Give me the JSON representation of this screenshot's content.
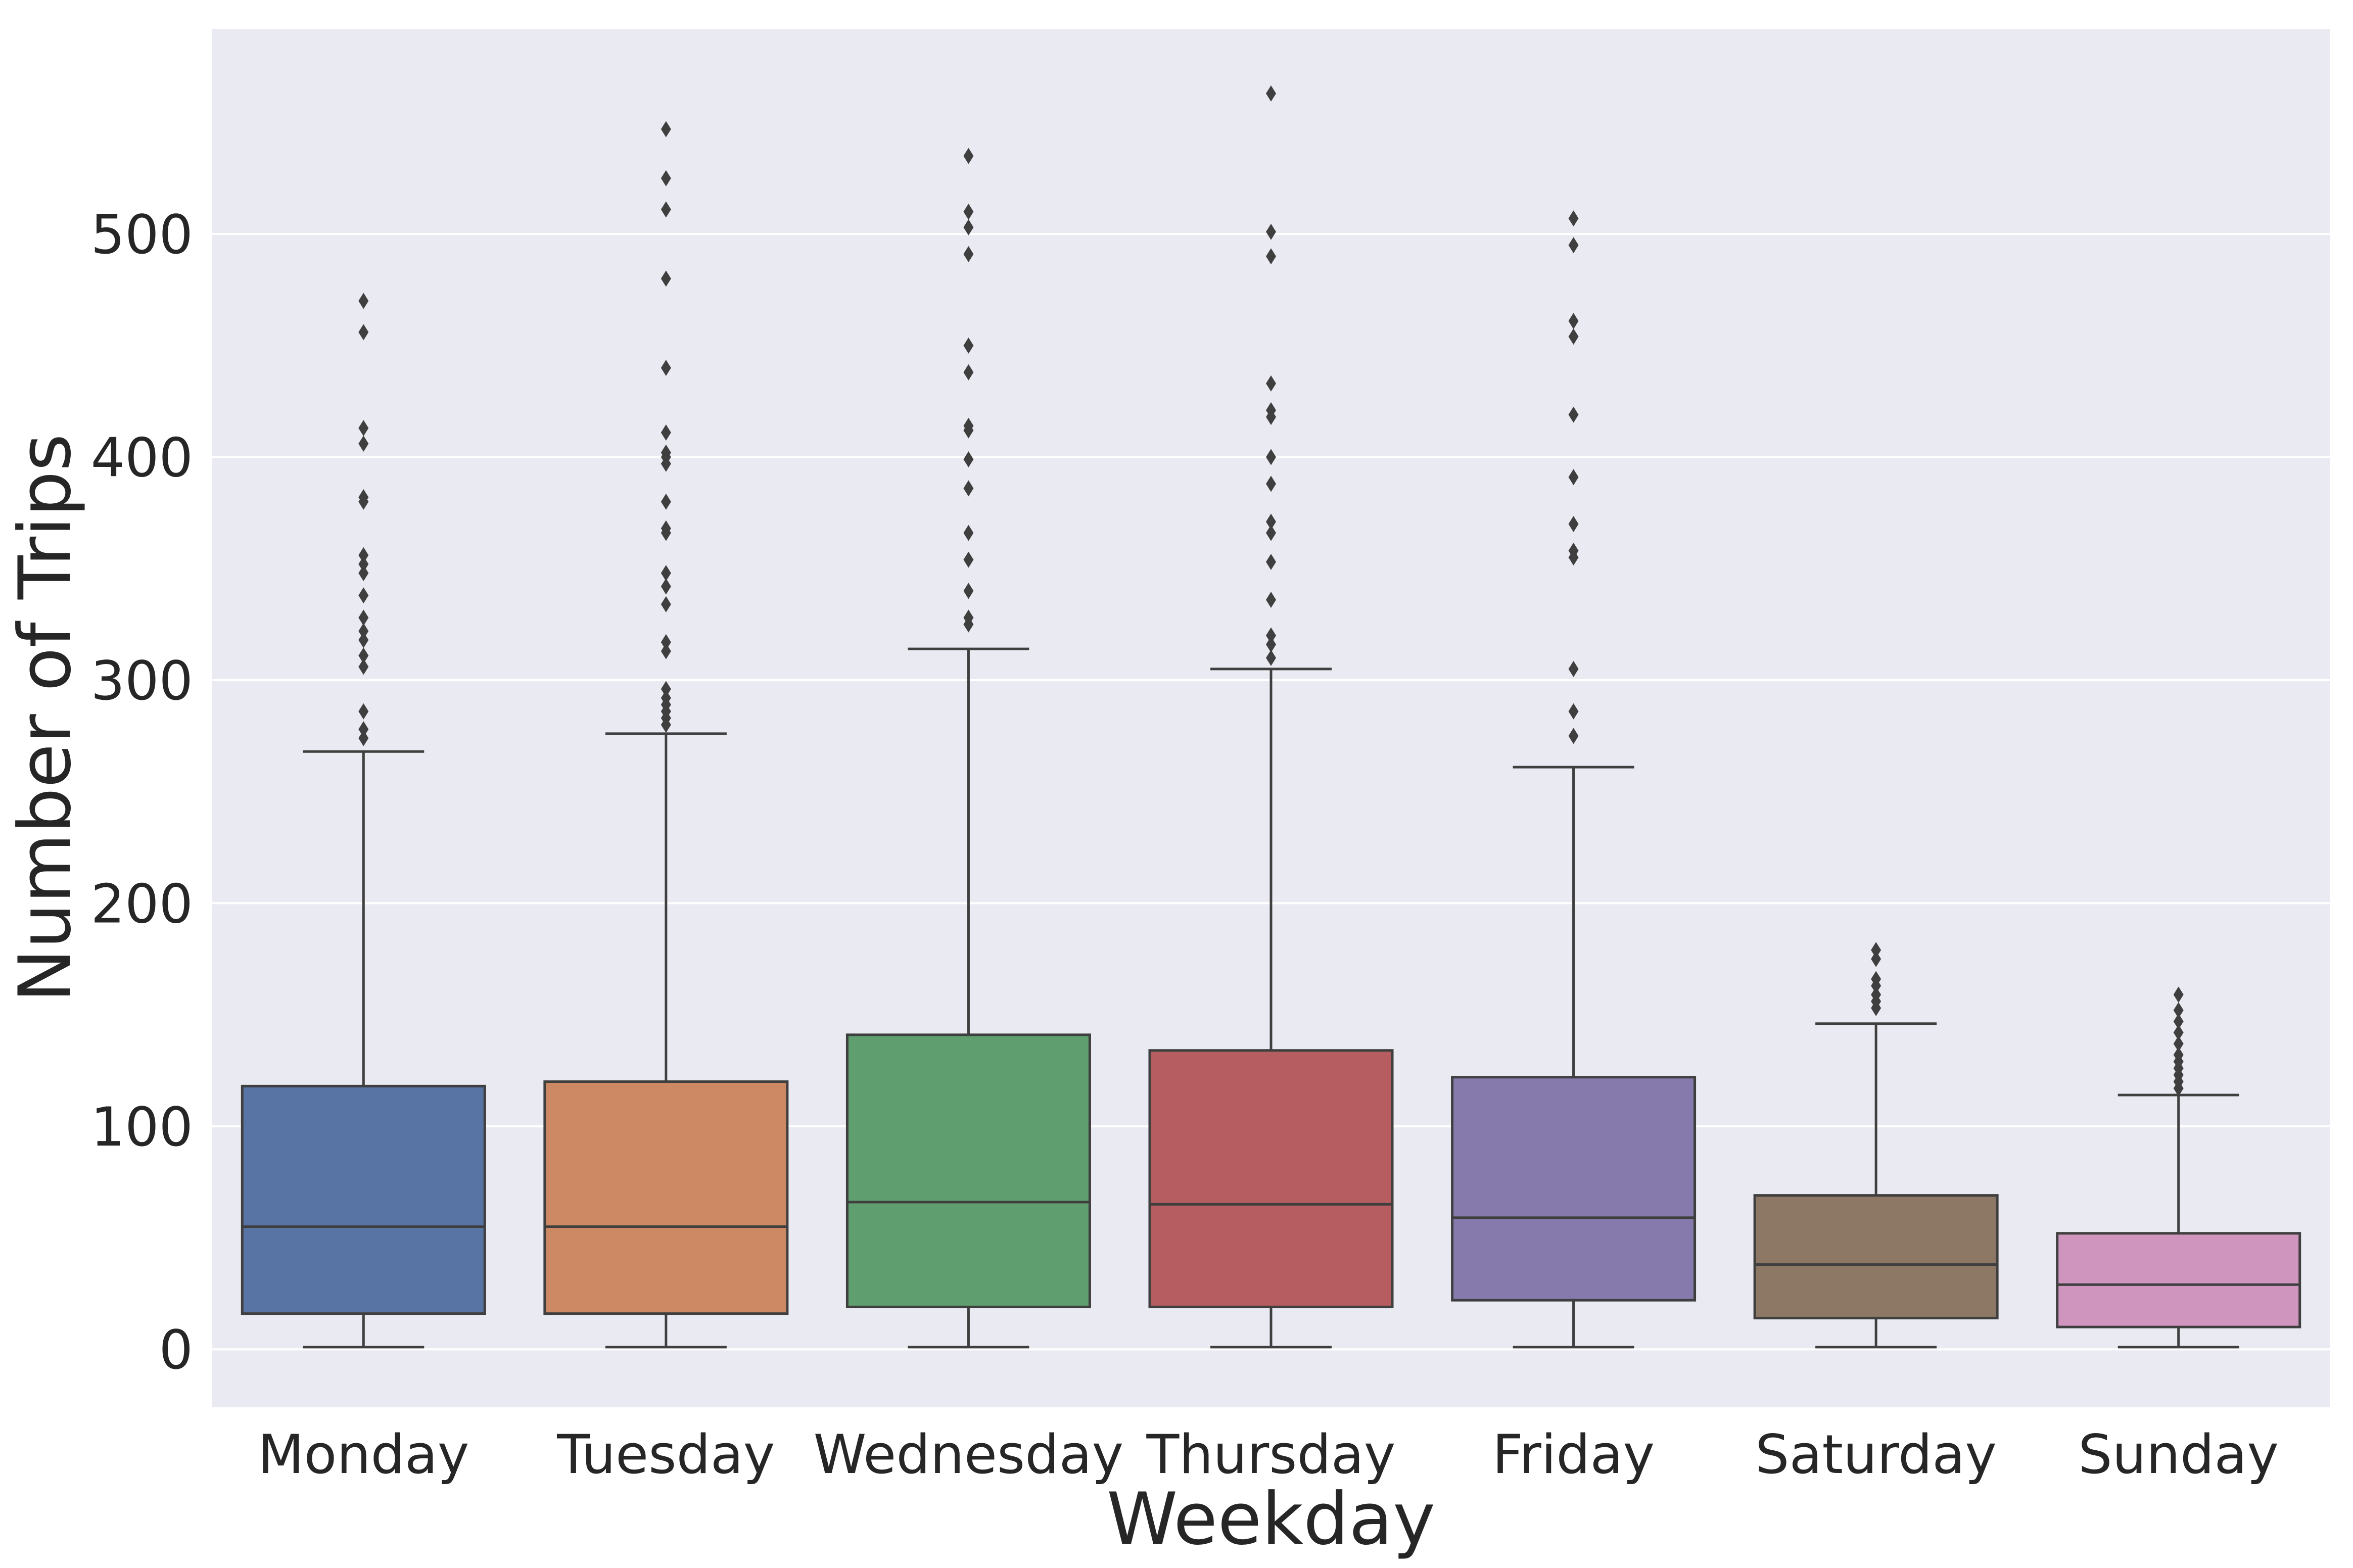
{
  "chart_data": {
    "type": "box",
    "xlabel": "Weekday",
    "ylabel": "Number of Trips",
    "ylim": [
      -26,
      592
    ],
    "yticks": [
      0,
      100,
      200,
      300,
      400,
      500
    ],
    "grid": true,
    "legend": "none",
    "colors": {
      "background": "#eaeaf2",
      "grid": "#ffffff",
      "line": "#3f3f3f",
      "text": "#262626"
    },
    "categories": [
      "Monday",
      "Tuesday",
      "Wednesday",
      "Thursday",
      "Friday",
      "Saturday",
      "Sunday"
    ],
    "boxes": [
      {
        "name": "Monday",
        "color": "#5874a5",
        "min": 1,
        "q1": 16,
        "median": 55,
        "q3": 118,
        "max": 268,
        "outliers": [
          274,
          278,
          286,
          306,
          311,
          318,
          322,
          328,
          338,
          348,
          352,
          356,
          380,
          382,
          406,
          413,
          456,
          470
        ]
      },
      {
        "name": "Tuesday",
        "color": "#cc8963",
        "min": 1,
        "q1": 16,
        "median": 55,
        "q3": 120,
        "max": 276,
        "outliers": [
          280,
          283,
          286,
          289,
          292,
          296,
          313,
          317,
          334,
          342,
          348,
          366,
          368,
          380,
          397,
          400,
          402,
          411,
          440,
          480,
          511,
          525,
          547
        ]
      },
      {
        "name": "Wednesday",
        "color": "#5f9e6e",
        "min": 1,
        "q1": 19,
        "median": 66,
        "q3": 141,
        "max": 314,
        "outliers": [
          325,
          328,
          340,
          354,
          366,
          386,
          399,
          412,
          414,
          438,
          450,
          491,
          503,
          510,
          535
        ]
      },
      {
        "name": "Thursday",
        "color": "#b55d60",
        "min": 1,
        "q1": 19,
        "median": 65,
        "q3": 134,
        "max": 305,
        "outliers": [
          310,
          316,
          320,
          336,
          353,
          366,
          371,
          388,
          400,
          418,
          421,
          433,
          490,
          501,
          563
        ]
      },
      {
        "name": "Friday",
        "color": "#857aab",
        "min": 1,
        "q1": 22,
        "median": 59,
        "q3": 122,
        "max": 261,
        "outliers": [
          275,
          286,
          305,
          355,
          358,
          370,
          391,
          419,
          454,
          461,
          495,
          507
        ]
      },
      {
        "name": "Saturday",
        "color": "#8d7866",
        "min": 1,
        "q1": 14,
        "median": 38,
        "q3": 69,
        "max": 146,
        "outliers": [
          153,
          156,
          159,
          163,
          166,
          175,
          179
        ]
      },
      {
        "name": "Sunday",
        "color": "#d095bf",
        "min": 1,
        "q1": 10,
        "median": 29,
        "q3": 52,
        "max": 114,
        "outliers": [
          117,
          120,
          123,
          126,
          129,
          132,
          137,
          142,
          147,
          152,
          159
        ]
      }
    ]
  }
}
